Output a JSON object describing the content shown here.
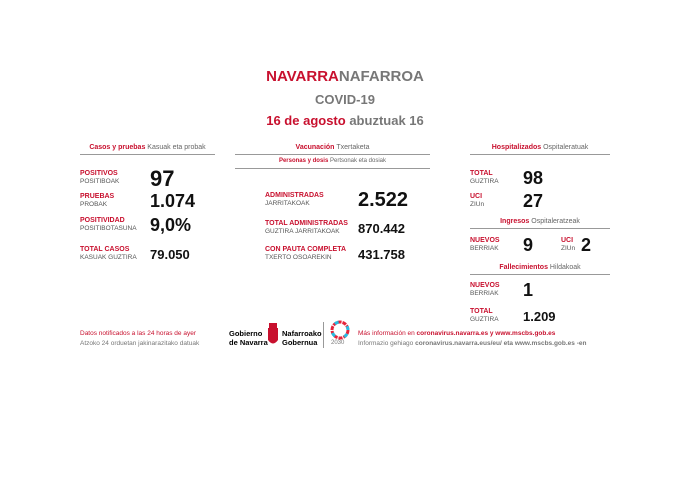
{
  "header": {
    "title_es": "NAVARRA",
    "title_eu": "NAFARROA",
    "subtitle": "COVID-19",
    "date_es": "16 de agosto",
    "date_eu": "abuztuak 16"
  },
  "cases": {
    "heading_es": "Casos y pruebas",
    "heading_eu": "Kasuak eta probak",
    "rows": [
      {
        "label_es": "POSITIVOS",
        "label_eu": "POSITIBOAK",
        "value": "97"
      },
      {
        "label_es": "PRUEBAS",
        "label_eu": "PROBAK",
        "value": "1.074"
      },
      {
        "label_es": "POSITIVIDAD",
        "label_eu": "POSITIBOTASUNA",
        "value": "9,0%"
      },
      {
        "label_es": "TOTAL CASOS",
        "label_eu": "KASUAK GUZTIRA",
        "value": "79.050"
      }
    ]
  },
  "vaccination": {
    "heading_es": "Vacunación",
    "heading_eu": "Txertaketa",
    "sub_es": "Personas y dosis",
    "sub_eu": "Pertsonak eta dosiak",
    "rows": [
      {
        "label_es": "ADMINISTRADAS",
        "label_eu": "JARRITAKOAK",
        "value": "2.522"
      },
      {
        "label_es": "TOTAL ADMINISTRADAS",
        "label_eu": "GUZTIRA JARRITAKOAK",
        "value": "870.442"
      },
      {
        "label_es": "CON PAUTA COMPLETA",
        "label_eu": "TXERTO OSOAREKIN",
        "value": "431.758"
      }
    ]
  },
  "hospital": {
    "heading_es": "Hospitalizados",
    "heading_eu": "Ospitaleratuak",
    "rows": [
      {
        "label_es": "TOTAL",
        "label_eu": "GUZTIRA",
        "value": "98"
      },
      {
        "label_es": "UCI",
        "label_eu": "ZIUn",
        "value": "27"
      }
    ]
  },
  "admissions": {
    "heading_es": "Ingresos",
    "heading_eu": "Ospitaleratzeak",
    "rows": [
      {
        "label_es": "NUEVOS",
        "label_eu": "BERRIAK",
        "value": "9"
      },
      {
        "label_es": "UCI",
        "label_eu": "ZIUn",
        "value": "2"
      }
    ]
  },
  "deaths": {
    "heading_es": "Fallecimientos",
    "heading_eu": "Hildakoak",
    "rows": [
      {
        "label_es": "NUEVOS",
        "label_eu": "BERRIAK",
        "value": "1"
      },
      {
        "label_es": "TOTAL",
        "label_eu": "GUZTIRA",
        "value": "1.209"
      }
    ]
  },
  "footer": {
    "note_es": "Datos notificados a las 24 horas de ayer",
    "note_eu": "Atzoko 24 orduetan jakinarazitako datuak",
    "logo_es_1": "Gobierno",
    "logo_es_2": "de Navarra",
    "logo_eu_1": "Nafarroako",
    "logo_eu_2": "Gobernua",
    "sdg": "2030",
    "info_es_prefix": "Más información en",
    "info_es_links": "coronavirus.navarra.es y www.mscbs.gob.es",
    "info_eu_prefix": "Informazio gehiago",
    "info_eu_links": "coronavirus.navarra.eus/eu/ eta www.mscbs.gob.es -en"
  }
}
